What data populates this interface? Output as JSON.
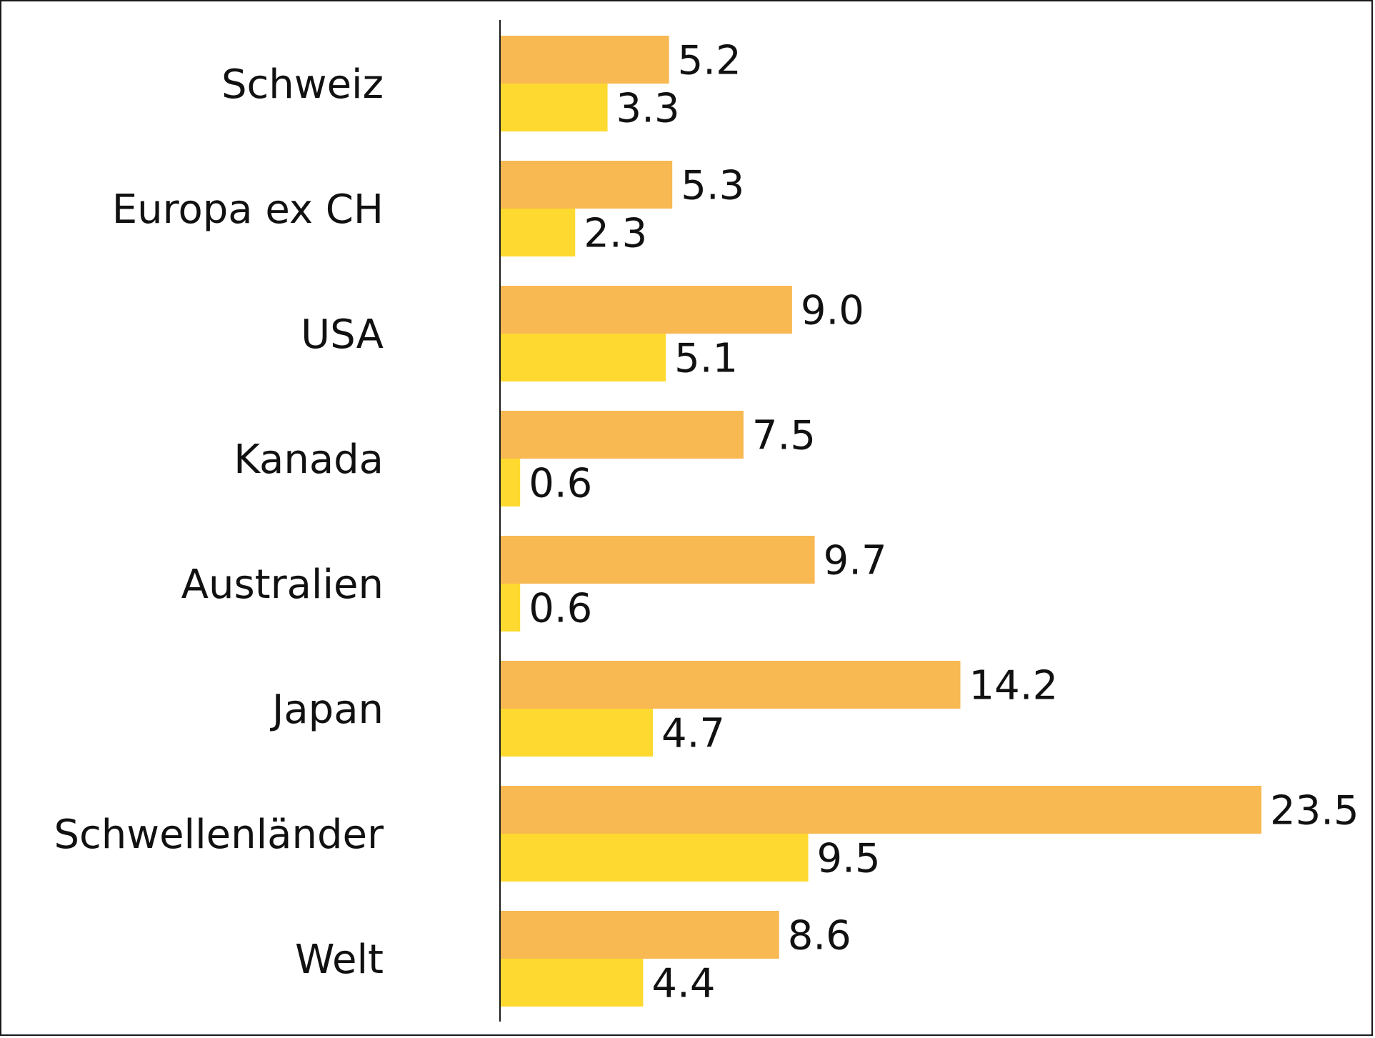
{
  "chart_data": {
    "type": "bar",
    "orientation": "horizontal",
    "categories": [
      "Schweiz",
      "Europa ex CH",
      "USA",
      "Kanada",
      "Australien",
      "Japan",
      "Schwellenländer",
      "Welt"
    ],
    "series": [
      {
        "values": [
          5.2,
          5.3,
          9.0,
          7.5,
          9.7,
          14.2,
          23.5,
          8.6
        ],
        "color": "#F8B852"
      },
      {
        "values": [
          3.3,
          2.3,
          5.1,
          0.6,
          0.6,
          4.7,
          9.5,
          4.4
        ],
        "color": "#FEDA30"
      }
    ],
    "value_labels": [
      [
        "5.2",
        "5.3",
        "9.0",
        "7.5",
        "9.7",
        "14.2",
        "23.5",
        "8.6"
      ],
      [
        "3.3",
        "2.3",
        "5.1",
        "0.6",
        "0.6",
        "4.7",
        "9.5",
        "4.4"
      ]
    ],
    "xlim": [
      0,
      23.5
    ],
    "grid": false,
    "legend": "none",
    "title": "",
    "xlabel": "",
    "ylabel": ""
  }
}
